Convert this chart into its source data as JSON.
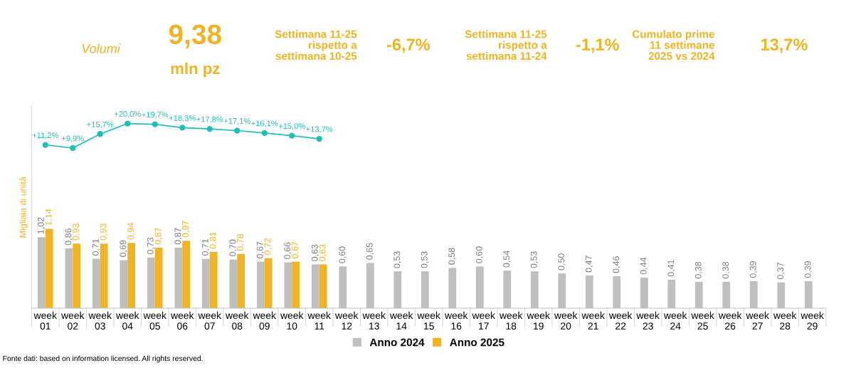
{
  "chart_data": {
    "type": "bar",
    "ylabel": "Migliaia di unità",
    "categories": [
      "week\n01",
      "week\n02",
      "week\n03",
      "week\n04",
      "week\n05",
      "week\n06",
      "week\n07",
      "week\n08",
      "week\n09",
      "week\n10",
      "week\n11",
      "week\n12",
      "week\n13",
      "week\n14",
      "week\n15",
      "week\n16",
      "week\n17",
      "week\n18",
      "week\n19",
      "week\n20",
      "week\n21",
      "week\n22",
      "week\n23",
      "week\n24",
      "week\n25",
      "week\n26",
      "week\n27",
      "week\n28",
      "week\n29"
    ],
    "series": [
      {
        "name": "Anno 2024",
        "color": "#bfbfbf",
        "values": [
          1.02,
          0.86,
          0.71,
          0.69,
          0.73,
          0.87,
          0.71,
          0.7,
          0.67,
          0.66,
          0.63,
          0.6,
          0.65,
          0.53,
          0.53,
          0.58,
          0.6,
          0.54,
          0.53,
          0.5,
          0.47,
          0.46,
          0.44,
          0.41,
          0.38,
          0.38,
          0.39,
          0.37,
          0.39
        ],
        "value_labels": [
          "1,02",
          "0,86",
          "0,71",
          "0,69",
          "0,73",
          "0,87",
          "0,71",
          "0,70",
          "0,67",
          "0,66",
          "0,63",
          "0,60",
          "0,65",
          "0,53",
          "0,53",
          "0,58",
          "0,60",
          "0,54",
          "0,53",
          "0,50",
          "0,47",
          "0,46",
          "0,44",
          "0,41",
          "0,38",
          "0,38",
          "0,39",
          "0,37",
          "0,39"
        ]
      },
      {
        "name": "Anno 2025",
        "color": "#f0b323",
        "values": [
          1.14,
          0.93,
          0.93,
          0.94,
          0.87,
          0.97,
          0.81,
          0.78,
          0.72,
          0.67,
          0.63,
          null,
          null,
          null,
          null,
          null,
          null,
          null,
          null,
          null,
          null,
          null,
          null,
          null,
          null,
          null,
          null,
          null,
          null
        ],
        "value_labels": [
          "1,14",
          "0,93",
          "0,93",
          "0,94",
          "0,87",
          "0,97",
          "0,81",
          "0,78",
          "0,72",
          "0,67",
          "0,63",
          null,
          null,
          null,
          null,
          null,
          null,
          null,
          null,
          null,
          null,
          null,
          null,
          null,
          null,
          null,
          null,
          null,
          null
        ]
      },
      {
        "type": "line",
        "axis": "y2",
        "color": "#1fbfb5",
        "marker": "circle",
        "values": [
          11.2,
          9.9,
          15.7,
          20.0,
          19.7,
          18.3,
          17.8,
          17.1,
          16.1,
          15.0,
          13.7,
          null,
          null,
          null,
          null,
          null,
          null,
          null,
          null,
          null,
          null,
          null,
          null,
          null,
          null,
          null,
          null,
          null,
          null
        ],
        "value_labels": [
          "+11,2%",
          "+9,9%",
          "+15,7%",
          "+20,0%",
          "+19,7%",
          "+18,3%",
          "+17,8%",
          "+17,1%",
          "+16,1%",
          "+15,0%",
          "+13,7%",
          null,
          null,
          null,
          null,
          null,
          null,
          null,
          null,
          null,
          null,
          null,
          null,
          null,
          null,
          null,
          null,
          null,
          null
        ]
      }
    ],
    "ylim": [
      0,
      2.9
    ],
    "y2lim": [
      -56,
      27
    ],
    "tick_labels": "x",
    "grid": false,
    "legend": "bottom",
    "annotations": [
      "Volumi",
      "9,38",
      "mln pz",
      "Settimana 11-25\nrispetto a\nsettimana 10-25",
      "-6,7%",
      "Settimana 11-25\nrispetto a\nsettimana 11-24",
      "-1,1%",
      "Cumulato prime\n11 settimane\n2025 vs 2024",
      "13,7%",
      "Fonte dati: based on information licensed. All rights reserved."
    ]
  }
}
